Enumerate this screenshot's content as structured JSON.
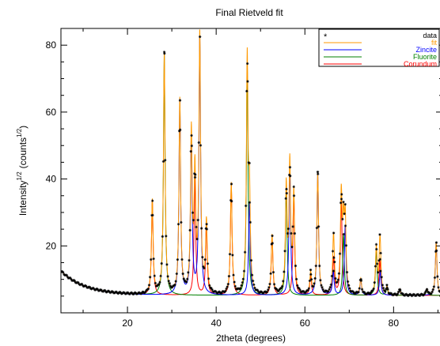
{
  "chart_data": {
    "type": "line",
    "title": "Final Rietveld fit",
    "xlabel": "2theta (degrees)",
    "ylabel": {
      "main": "Intensity",
      "exp": "1/2",
      "unit": "(counts",
      "unit_exp": "1/2",
      "close": ")"
    },
    "xlim": [
      5,
      91
    ],
    "ylim": [
      0,
      85
    ],
    "xticks": [
      20,
      40,
      60,
      80
    ],
    "yticks": [
      20,
      40,
      60,
      80
    ],
    "legend": {
      "position": "top-right",
      "entries": [
        {
          "name": "data",
          "marker": "*",
          "color": "#000000"
        },
        {
          "name": "fit",
          "color": "#ff9900"
        },
        {
          "name": "Zincite",
          "color": "#0000ff"
        },
        {
          "name": "Fluorite",
          "color": "#008000"
        },
        {
          "name": "Corundum",
          "color": "#ff0000"
        }
      ]
    },
    "background": {
      "start": 12.5,
      "level": 5.2,
      "decay": 5.5
    },
    "peaks": [
      {
        "phase": "Corundum",
        "x": 25.6,
        "y": 33.5
      },
      {
        "phase": "Fluorite",
        "x": 28.3,
        "y": 77.5
      },
      {
        "phase": "Zincite",
        "x": 31.8,
        "y": 63.5
      },
      {
        "phase": "Zincite",
        "x": 34.4,
        "y": 53.0
      },
      {
        "phase": "Corundum",
        "x": 35.2,
        "y": 40.5
      },
      {
        "phase": "Zincite",
        "x": 36.3,
        "y": 82.5
      },
      {
        "phase": "Corundum",
        "x": 37.8,
        "y": 26.5
      },
      {
        "phase": "Corundum",
        "x": 43.4,
        "y": 38.5
      },
      {
        "phase": "Fluorite",
        "x": 47.0,
        "y": 74.5
      },
      {
        "phase": "Zincite",
        "x": 47.5,
        "y": 33.0
      },
      {
        "phase": "Corundum",
        "x": 52.6,
        "y": 23.0
      },
      {
        "phase": "Fluorite",
        "x": 55.8,
        "y": 37.0
      },
      {
        "phase": "Zincite",
        "x": 56.6,
        "y": 43.5
      },
      {
        "phase": "Corundum",
        "x": 57.5,
        "y": 35.0
      },
      {
        "phase": "Corundum",
        "x": 61.3,
        "y": 11.5
      },
      {
        "phase": "Zincite",
        "x": 62.9,
        "y": 41.5
      },
      {
        "phase": "Corundum",
        "x": 66.5,
        "y": 16.5
      },
      {
        "phase": "Zincite",
        "x": 66.4,
        "y": 12.5
      },
      {
        "phase": "Corundum",
        "x": 68.2,
        "y": 34.0
      },
      {
        "phase": "Fluorite",
        "x": 68.7,
        "y": 23.5
      },
      {
        "phase": "Zincite",
        "x": 69.1,
        "y": 26.0
      },
      {
        "phase": "Zincite",
        "x": 72.6,
        "y": 10.0
      },
      {
        "phase": "Fluorite",
        "x": 76.1,
        "y": 19.0
      },
      {
        "phase": "Corundum",
        "x": 76.9,
        "y": 16.0
      },
      {
        "phase": "Zincite",
        "x": 77.0,
        "y": 12.5
      },
      {
        "phase": "Fluorite",
        "x": 78.5,
        "y": 7.5
      },
      {
        "phase": "Zincite",
        "x": 81.4,
        "y": 7.0
      },
      {
        "phase": "Fluorite",
        "x": 87.5,
        "y": 7.0
      },
      {
        "phase": "Zincite",
        "x": 89.6,
        "y": 21.0
      }
    ]
  }
}
